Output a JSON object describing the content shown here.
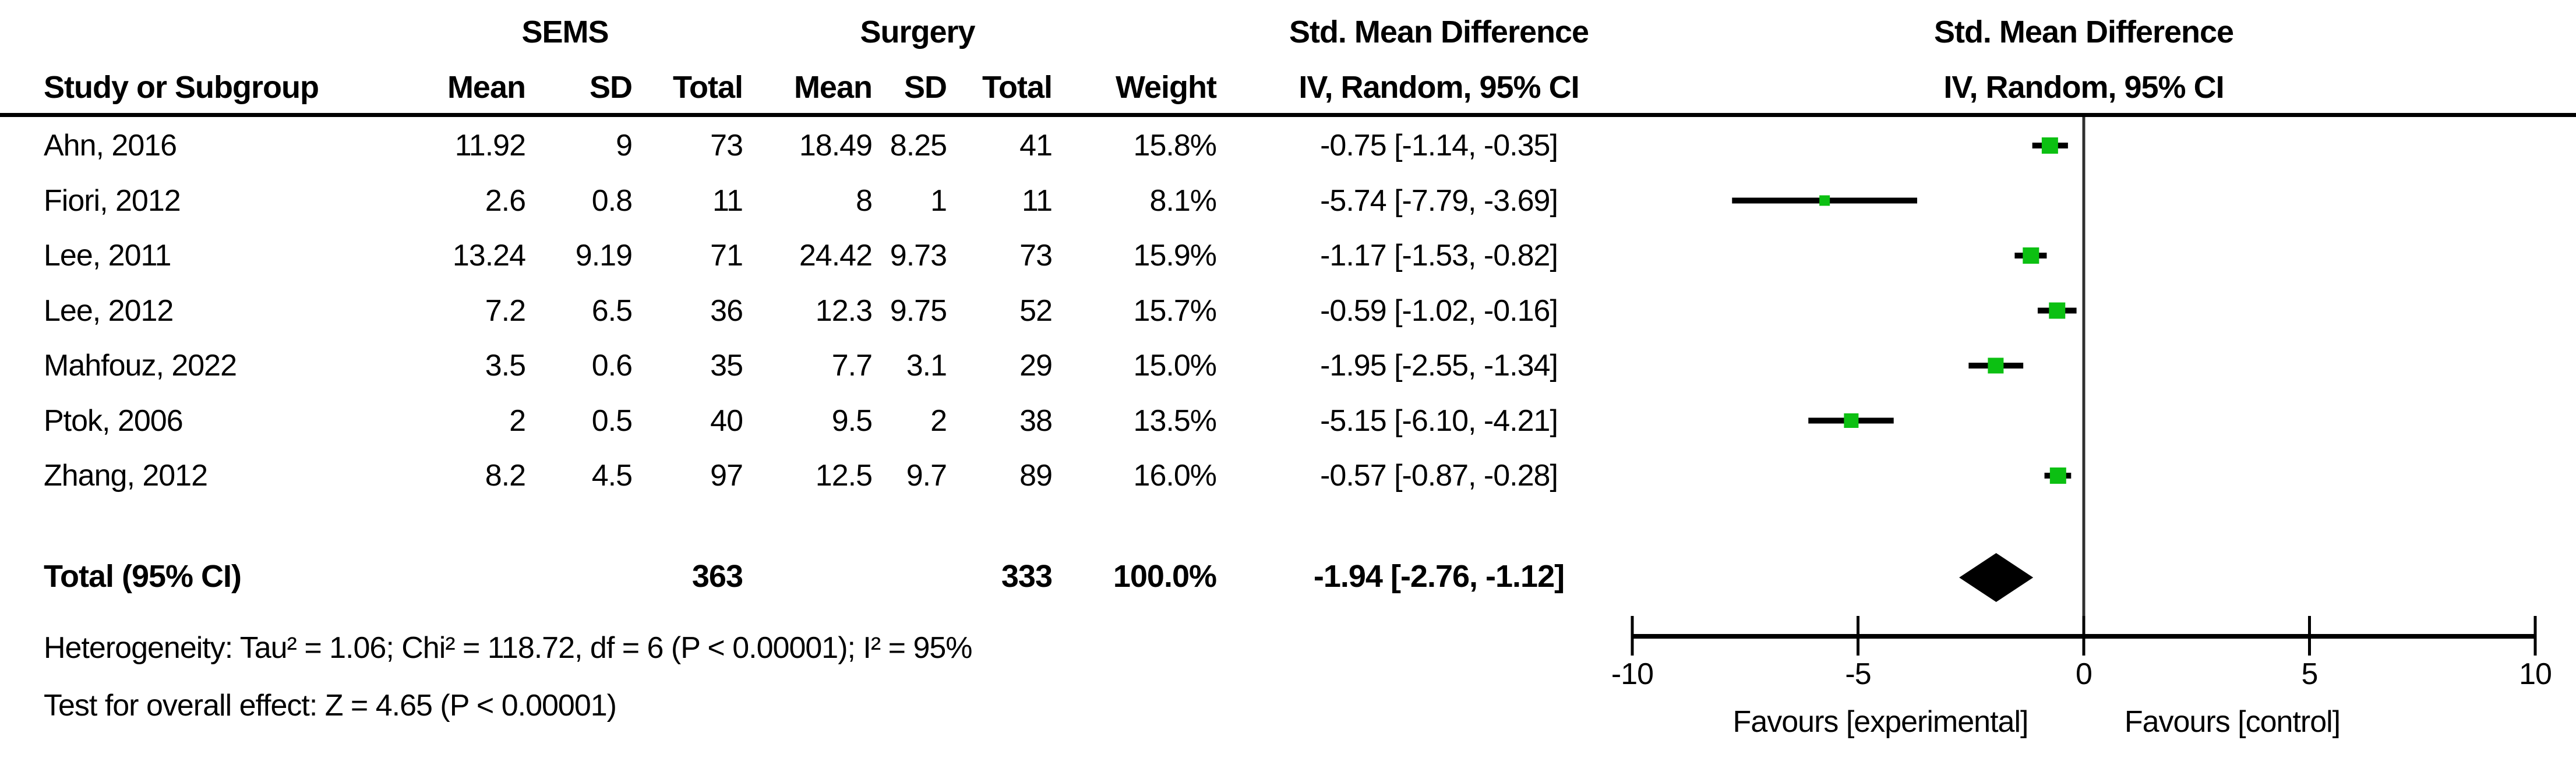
{
  "table": {
    "group1_label": "SEMS",
    "group2_label": "Surgery",
    "effect_header_line1": "Std. Mean Difference",
    "effect_header_line2": "IV, Random, 95% CI",
    "plot_header_line1": "Std. Mean Difference",
    "plot_header_line2": "IV, Random, 95% CI",
    "headers": {
      "study": "Study or Subgroup",
      "mean": "Mean",
      "sd": "SD",
      "total": "Total",
      "weight": "Weight"
    },
    "studies": [
      {
        "name": "Ahn, 2016",
        "mean1": "11.92",
        "sd1": "9",
        "total1": "73",
        "mean2": "18.49",
        "sd2": "8.25",
        "total2": "41",
        "weight": "15.8%",
        "ci_text": "-0.75 [-1.14, -0.35]",
        "smd": -0.75,
        "ci_low": -1.14,
        "ci_high": -0.35,
        "weight_pct": 15.8
      },
      {
        "name": "Fiori, 2012",
        "mean1": "2.6",
        "sd1": "0.8",
        "total1": "11",
        "mean2": "8",
        "sd2": "1",
        "total2": "11",
        "weight": "8.1%",
        "ci_text": "-5.74 [-7.79, -3.69]",
        "smd": -5.74,
        "ci_low": -7.79,
        "ci_high": -3.69,
        "weight_pct": 8.1
      },
      {
        "name": "Lee, 2011",
        "mean1": "13.24",
        "sd1": "9.19",
        "total1": "71",
        "mean2": "24.42",
        "sd2": "9.73",
        "total2": "73",
        "weight": "15.9%",
        "ci_text": "-1.17 [-1.53, -0.82]",
        "smd": -1.17,
        "ci_low": -1.53,
        "ci_high": -0.82,
        "weight_pct": 15.9
      },
      {
        "name": "Lee, 2012",
        "mean1": "7.2",
        "sd1": "6.5",
        "total1": "36",
        "mean2": "12.3",
        "sd2": "9.75",
        "total2": "52",
        "weight": "15.7%",
        "ci_text": "-0.59 [-1.02, -0.16]",
        "smd": -0.59,
        "ci_low": -1.02,
        "ci_high": -0.16,
        "weight_pct": 15.7
      },
      {
        "name": "Mahfouz, 2022",
        "mean1": "3.5",
        "sd1": "0.6",
        "total1": "35",
        "mean2": "7.7",
        "sd2": "3.1",
        "total2": "29",
        "weight": "15.0%",
        "ci_text": "-1.95 [-2.55, -1.34]",
        "smd": -1.95,
        "ci_low": -2.55,
        "ci_high": -1.34,
        "weight_pct": 15.0
      },
      {
        "name": "Ptok, 2006",
        "mean1": "2",
        "sd1": "0.5",
        "total1": "40",
        "mean2": "9.5",
        "sd2": "2",
        "total2": "38",
        "weight": "13.5%",
        "ci_text": "-5.15 [-6.10, -4.21]",
        "smd": -5.15,
        "ci_low": -6.1,
        "ci_high": -4.21,
        "weight_pct": 13.5
      },
      {
        "name": "Zhang, 2012",
        "mean1": "8.2",
        "sd1": "4.5",
        "total1": "97",
        "mean2": "12.5",
        "sd2": "9.7",
        "total2": "89",
        "weight": "16.0%",
        "ci_text": "-0.57 [-0.87, -0.28]",
        "smd": -0.57,
        "ci_low": -0.87,
        "ci_high": -0.28,
        "weight_pct": 16.0
      }
    ],
    "total": {
      "label": "Total (95% CI)",
      "total1": "363",
      "total2": "333",
      "weight": "100.0%",
      "ci_text": "-1.94 [-2.76, -1.12]",
      "smd": -1.94,
      "ci_low": -2.76,
      "ci_high": -1.12
    },
    "heterogeneity": "Heterogeneity: Tau² = 1.06; Chi² = 118.72, df = 6 (P < 0.00001); I² = 95%",
    "overall_effect": "Test for overall effect: Z = 4.65 (P < 0.00001)"
  },
  "plot": {
    "axis_min": -10,
    "axis_max": 10,
    "axis_ticks": [
      -10,
      -5,
      0,
      5,
      10
    ],
    "axis_tick_labels": [
      "-10",
      "-5",
      "0",
      "5",
      "10"
    ],
    "favours_left": "Favours [experimental]",
    "favours_right": "Favours [control]",
    "marker_color": "#0cc012",
    "ci_line_color": "#000000",
    "diamond_color": "#000000",
    "zero_line_color": "#2f2f2f",
    "axis_color": "#000000"
  },
  "chart_data": {
    "type": "scatter",
    "subtype": "forest-plot",
    "title": "Std. Mean Difference  IV, Random, 95% CI",
    "xlabel_left": "Favours [experimental]",
    "xlabel_right": "Favours [control]",
    "xlim": [
      -10,
      10
    ],
    "x_ticks": [
      -10,
      -5,
      0,
      5,
      10
    ],
    "studies": [
      "Ahn, 2016",
      "Fiori, 2012",
      "Lee, 2011",
      "Lee, 2012",
      "Mahfouz, 2022",
      "Ptok, 2006",
      "Zhang, 2012"
    ],
    "smd": [
      -0.75,
      -5.74,
      -1.17,
      -0.59,
      -1.95,
      -5.15,
      -0.57
    ],
    "ci_low": [
      -1.14,
      -7.79,
      -1.53,
      -1.02,
      -2.55,
      -6.1,
      -0.87
    ],
    "ci_high": [
      -0.35,
      -3.69,
      -0.82,
      -0.16,
      -1.34,
      -4.21,
      -0.28
    ],
    "weights_pct": [
      15.8,
      8.1,
      15.9,
      15.7,
      15.0,
      13.5,
      16.0
    ],
    "overall": {
      "label": "Total (95% CI)",
      "smd": -1.94,
      "ci_low": -2.76,
      "ci_high": -1.12,
      "weight_pct": 100.0,
      "marker": "diamond"
    }
  }
}
